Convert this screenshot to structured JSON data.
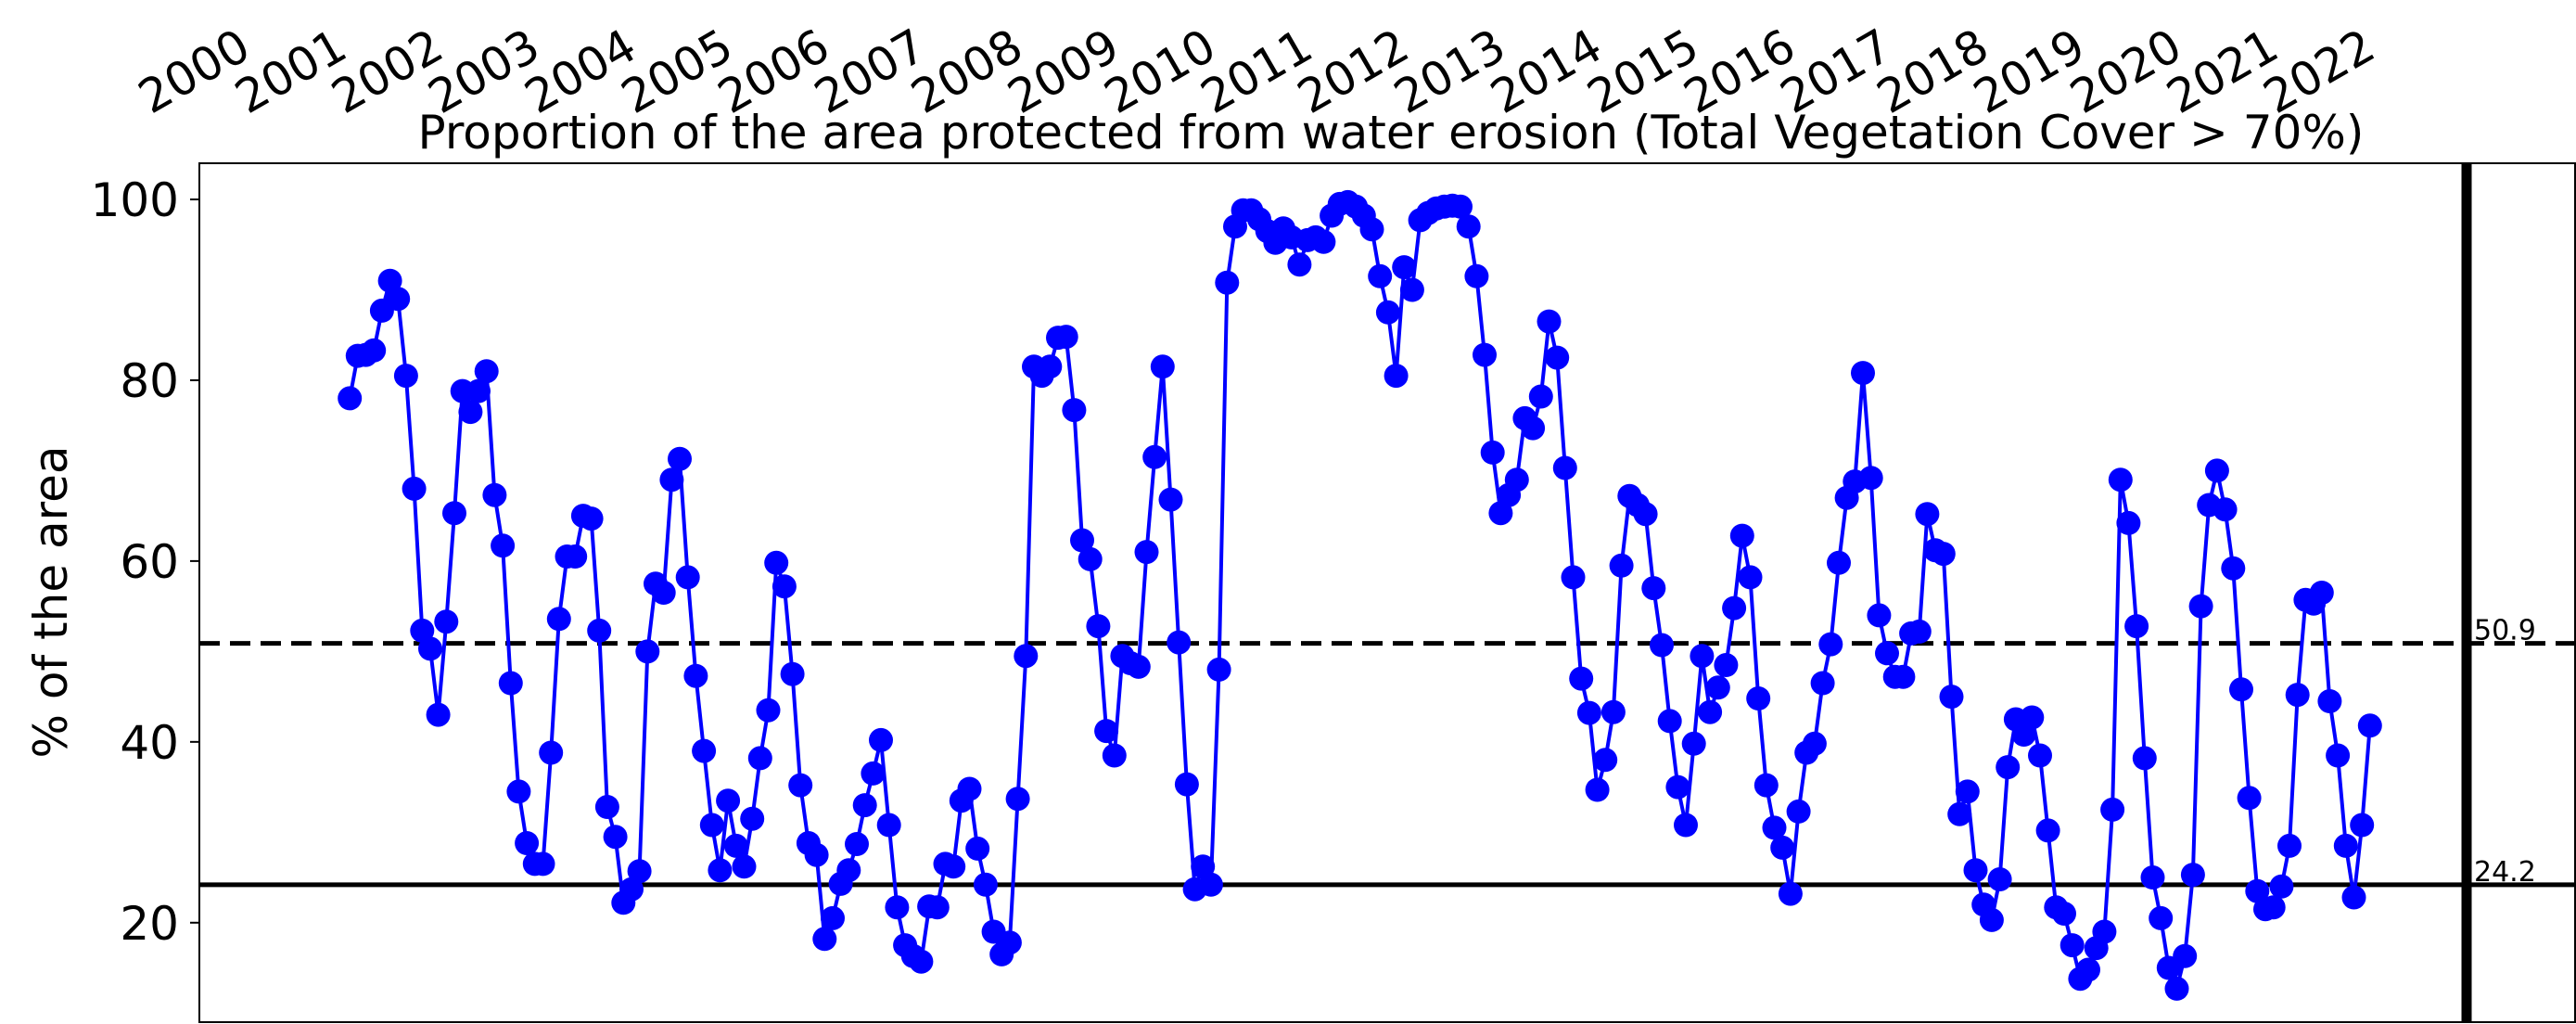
{
  "chart_data": {
    "type": "line",
    "title": "Proportion of the area protected from water erosion (Total Vegetation Cover > 70%)",
    "xlabel": "",
    "ylabel": "% of the area",
    "x_ticks": [
      "2000",
      "2001",
      "2002",
      "2003",
      "2004",
      "2005",
      "2006",
      "2007",
      "2008",
      "2009",
      "2010",
      "2011",
      "2012",
      "2013",
      "2014",
      "2015",
      "2016",
      "2017",
      "2018",
      "2019",
      "2020",
      "2021",
      "2022"
    ],
    "x_range": [
      "2000-01",
      "2022-12"
    ],
    "y_ticks": [
      20,
      40,
      60,
      80,
      100
    ],
    "ylim": [
      9,
      104
    ],
    "grid": false,
    "legend": "none",
    "series_color": "#0000ff",
    "series": [
      {
        "x_start": "2001-01",
        "step": "month",
        "values": [
          78,
          82.7,
          82.8,
          83.3,
          87.7,
          91,
          89,
          80.5,
          68,
          52.3,
          50.3,
          43,
          53.3,
          65.3,
          78.8,
          76.5,
          78.8,
          81,
          67.3,
          61.7,
          46.5,
          34.5,
          28.8,
          26.5,
          26.5,
          38.8,
          53.6,
          60.5,
          60.5,
          65,
          64.7,
          52.3,
          32.8,
          29.5,
          22.2,
          23.7,
          25.7,
          50,
          57.5,
          56.5,
          69,
          71.3,
          58.2,
          47.3,
          39,
          30.8,
          25.8,
          33.5,
          28.5,
          26.2,
          31.5,
          38.2,
          43.5,
          59.8,
          57.2,
          47.5,
          35.2,
          28.8,
          27.5,
          18.2,
          20.5,
          24.3,
          25.8,
          28.7,
          33,
          36.5,
          40.2,
          30.8,
          21.7,
          17.5,
          16.3,
          15.7,
          21.8,
          21.7,
          26.5,
          26.2,
          33.5,
          34.8,
          28.2,
          24.2,
          19,
          16.5,
          17.8,
          33.7,
          49.5,
          81.5,
          80.5,
          81.5,
          84.7,
          84.8,
          76.7,
          62.3,
          60.2,
          52.8,
          41.2,
          38.5,
          49.5,
          48.7,
          48.3,
          61,
          71.5,
          81.5,
          66.8,
          51,
          35.3,
          23.7,
          26.2,
          24.2,
          48,
          90.8,
          97,
          98.8,
          98.8,
          97.8,
          96.5,
          95.2,
          96.8,
          95.8,
          92.8,
          95.5,
          95.8,
          95.3,
          98.2,
          99.5,
          99.7,
          99.2,
          98.2,
          96.7,
          91.5,
          87.5,
          80.5,
          92.5,
          90,
          97.7,
          98.5,
          99,
          99.2,
          99.3,
          99.2,
          97,
          91.5,
          82.8,
          72,
          65.3,
          67.3,
          69,
          75.8,
          74.7,
          78.2,
          86.5,
          82.5,
          70.3,
          58.2,
          47,
          43.2,
          34.7,
          38,
          43.3,
          59.5,
          67.2,
          66.2,
          65.2,
          57,
          50.7,
          42.3,
          35,
          30.8,
          39.8,
          49.5,
          43.3,
          46,
          48.5,
          54.8,
          62.8,
          58.2,
          44.8,
          35.2,
          30.5,
          28.3,
          23.2,
          32.3,
          38.8,
          39.8,
          46.5,
          50.8,
          59.8,
          67,
          68.8,
          80.8,
          69.2,
          54,
          49.8,
          47.2,
          47.2,
          52,
          52.2,
          65.2,
          61.2,
          60.8,
          45,
          32,
          34.5,
          25.8,
          22,
          20.3,
          24.8,
          37.2,
          42.5,
          40.8,
          42.7,
          38.5,
          30.2,
          21.7,
          21,
          17.5,
          13.8,
          14.8,
          17.2,
          19,
          32.5,
          69,
          64.2,
          52.8,
          38.2,
          25,
          20.5,
          15,
          12.7,
          16.3,
          25.3,
          55,
          66.2,
          70,
          65.7,
          59.2,
          45.8,
          33.8,
          23.5,
          21.5,
          21.7,
          24,
          28.5,
          45.2,
          55.7,
          55.3,
          56.5,
          44.5,
          38.5,
          28.5,
          22.8,
          30.8,
          41.8
        ]
      }
    ],
    "reference_lines": [
      {
        "value": 50.9,
        "label": "50.9",
        "style": "dashed"
      },
      {
        "value": 24.2,
        "label": "24.2",
        "style": "solid"
      }
    ],
    "vertical_marker": {
      "x": "2022-12"
    }
  }
}
